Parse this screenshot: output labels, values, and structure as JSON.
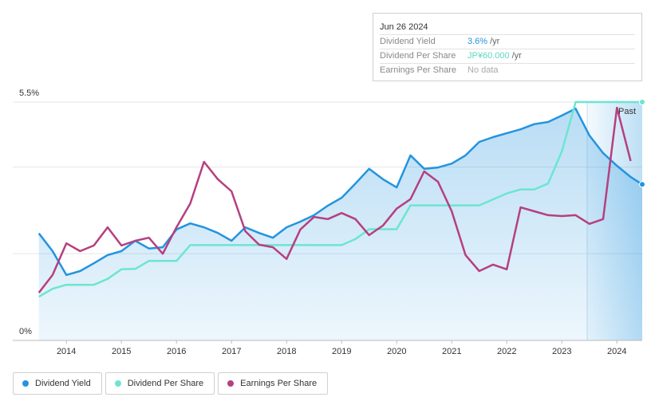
{
  "chart_data": {
    "type": "line",
    "x": [
      2013.5,
      2013.75,
      2014,
      2014.25,
      2014.5,
      2014.75,
      2015,
      2015.25,
      2015.5,
      2015.75,
      2016,
      2016.25,
      2016.5,
      2016.75,
      2017,
      2017.25,
      2017.5,
      2017.75,
      2018,
      2018.25,
      2018.5,
      2018.75,
      2019,
      2019.25,
      2019.5,
      2019.75,
      2020,
      2020.25,
      2020.5,
      2020.75,
      2021,
      2021.25,
      2021.5,
      2021.75,
      2022,
      2022.25,
      2022.5,
      2022.75,
      2023,
      2023.25,
      2023.5,
      2023.75,
      2024,
      2024.25,
      2024.46
    ],
    "xlim": [
      2013.49,
      2024.46
    ],
    "xticks": [
      2014,
      2015,
      2016,
      2017,
      2018,
      2019,
      2020,
      2021,
      2022,
      2023,
      2024
    ],
    "ylim": [
      0,
      5.5
    ],
    "yticks": [
      {
        "value": 0,
        "label": "0%"
      },
      {
        "value": 2,
        "label": null
      },
      {
        "value": 4,
        "label": null
      },
      {
        "value": 5.5,
        "label": "5.5%"
      }
    ],
    "y2lim": [
      0,
      60
    ],
    "grid": true,
    "series": [
      {
        "name": "Dividend Yield",
        "color": "#2394df",
        "values": [
          2.47,
          2.06,
          1.51,
          1.6,
          1.78,
          1.97,
          2.06,
          2.3,
          2.12,
          2.15,
          2.56,
          2.7,
          2.61,
          2.48,
          2.3,
          2.61,
          2.48,
          2.37,
          2.61,
          2.74,
          2.89,
          3.11,
          3.29,
          3.62,
          3.96,
          3.72,
          3.53,
          4.27,
          3.96,
          3.99,
          4.08,
          4.27,
          4.58,
          4.69,
          4.78,
          4.87,
          4.99,
          5.04,
          5.19,
          5.35,
          4.73,
          4.32,
          4.03,
          3.77,
          3.6
        ]
      },
      {
        "name": "Dividend Per Share",
        "color": "#6ce5d2",
        "axis": "y2",
        "values": [
          11,
          13,
          14,
          14,
          14,
          15.5,
          17.9,
          18,
          20,
          20,
          20,
          24,
          24,
          24,
          24,
          24,
          24,
          24,
          24,
          24,
          24,
          24,
          24,
          25.5,
          28,
          28,
          28,
          34,
          34,
          34,
          34,
          34,
          34,
          35.5,
          37,
          38,
          38,
          39.5,
          47.6,
          60,
          60,
          60,
          60,
          60,
          60
        ]
      },
      {
        "name": "Earnings Per Share",
        "color": "#b5407f",
        "values": [
          1.1,
          1.51,
          2.24,
          2.06,
          2.19,
          2.61,
          2.19,
          2.3,
          2.37,
          2.0,
          2.61,
          3.16,
          4.12,
          3.72,
          3.44,
          2.52,
          2.21,
          2.15,
          1.88,
          2.56,
          2.85,
          2.8,
          2.94,
          2.8,
          2.43,
          2.65,
          3.04,
          3.26,
          3.9,
          3.66,
          2.98,
          1.97,
          1.6,
          1.75,
          1.64,
          3.07,
          2.98,
          2.89,
          2.87,
          2.89,
          2.69,
          2.8,
          5.37,
          4.14,
          null
        ]
      }
    ],
    "annotation": "Past",
    "tooltip": {
      "date": "Jun 26 2024",
      "rows": [
        {
          "label": "Dividend Yield",
          "value": "3.6%",
          "unit": "/yr"
        },
        {
          "label": "Dividend Per Share",
          "value": "JP¥60.000",
          "unit": "/yr"
        },
        {
          "label": "Earnings Per Share",
          "value": "No data"
        }
      ]
    }
  }
}
